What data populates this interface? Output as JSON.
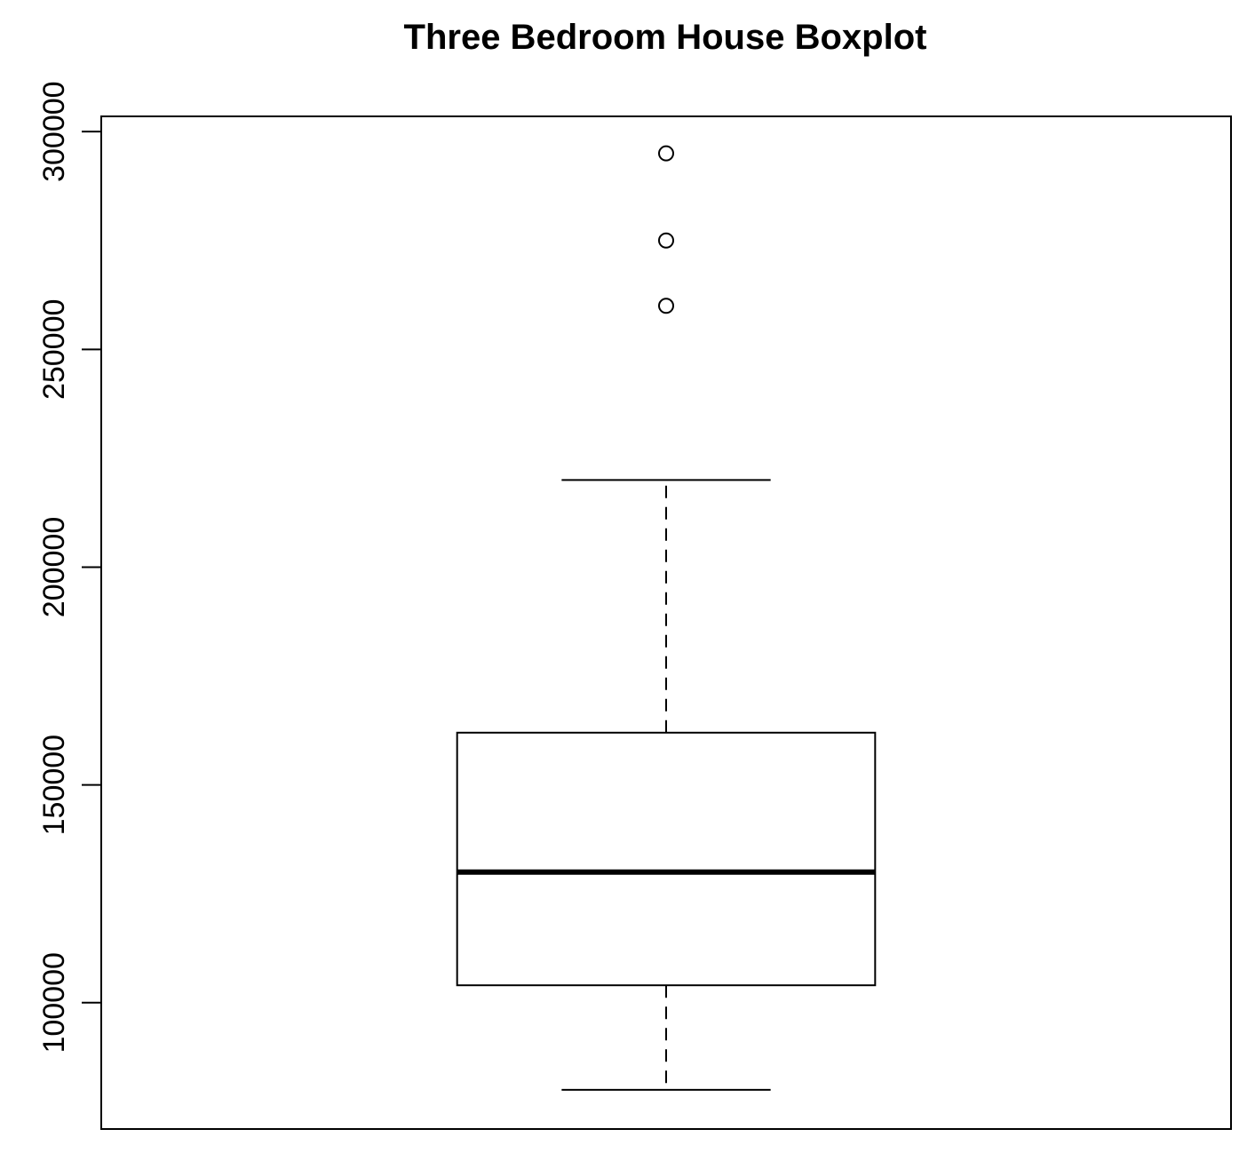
{
  "chart_data": {
    "type": "boxplot",
    "title": "Three Bedroom House Boxplot",
    "xlabel": "",
    "ylabel": "",
    "ylim": [
      71000,
      303500
    ],
    "y_ticks": [
      100000,
      150000,
      200000,
      250000,
      300000
    ],
    "y_tick_labels": [
      "100000",
      "150000",
      "200000",
      "250000",
      "300000"
    ],
    "grid": false,
    "boxes": [
      {
        "whisker_low": 80000,
        "q1": 104000,
        "median": 130000,
        "q3": 162000,
        "whisker_high": 220000,
        "outliers": [
          260000,
          275000,
          295000
        ]
      }
    ],
    "colors": {
      "line": "#000000",
      "box_fill": "#ffffff",
      "background": "#ffffff"
    }
  }
}
